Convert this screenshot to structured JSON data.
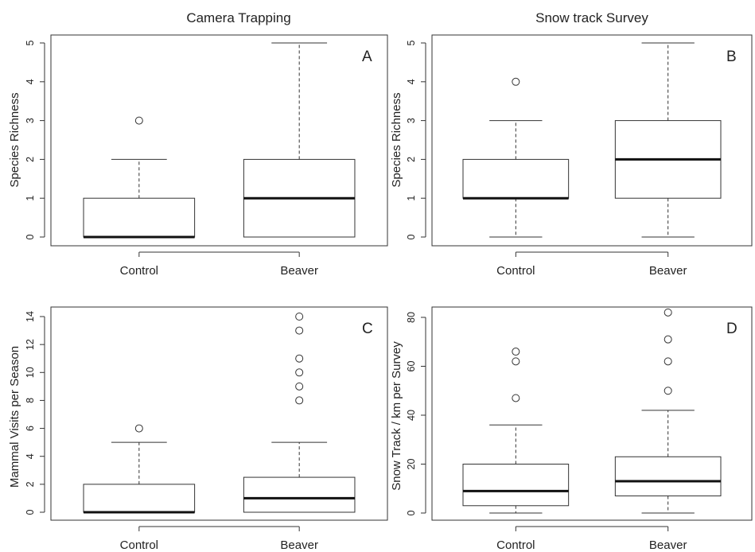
{
  "column_titles": [
    "Camera Trapping",
    "Snow track Survey"
  ],
  "chart_data": [
    {
      "type": "box",
      "panel_label": "A",
      "ylabel": "Species Richness",
      "categories": [
        "Control",
        "Beaver"
      ],
      "ylim": [
        0,
        5
      ],
      "yticks": [
        0,
        1,
        2,
        3,
        4,
        5
      ],
      "boxes": [
        {
          "min": 0,
          "q1": 0,
          "median": 0,
          "q3": 1,
          "max": 2,
          "outliers": [
            3
          ]
        },
        {
          "min": 0,
          "q1": 0,
          "median": 1,
          "q3": 2,
          "max": 5,
          "outliers": []
        }
      ]
    },
    {
      "type": "box",
      "panel_label": "B",
      "ylabel": "Species Richness",
      "categories": [
        "Control",
        "Beaver"
      ],
      "ylim": [
        0,
        5
      ],
      "yticks": [
        0,
        1,
        2,
        3,
        4,
        5
      ],
      "boxes": [
        {
          "min": 0,
          "q1": 1,
          "median": 1,
          "q3": 2,
          "max": 3,
          "outliers": [
            4
          ]
        },
        {
          "min": 0,
          "q1": 1,
          "median": 2,
          "q3": 3,
          "max": 5,
          "outliers": []
        }
      ]
    },
    {
      "type": "box",
      "panel_label": "C",
      "ylabel": "Mammal Visits per Season",
      "categories": [
        "Control",
        "Beaver"
      ],
      "ylim": [
        0,
        14
      ],
      "yticks": [
        0,
        2,
        4,
        6,
        8,
        10,
        12,
        14
      ],
      "boxes": [
        {
          "min": 0,
          "q1": 0,
          "median": 0,
          "q3": 2,
          "max": 5,
          "outliers": [
            6
          ]
        },
        {
          "min": 0,
          "q1": 0,
          "median": 1,
          "q3": 2.5,
          "max": 5,
          "outliers": [
            8,
            9,
            10,
            11,
            13,
            14
          ]
        }
      ]
    },
    {
      "type": "box",
      "panel_label": "D",
      "ylabel": "Snow Track / km per Survey",
      "categories": [
        "Control",
        "Beaver"
      ],
      "ylim": [
        0,
        80
      ],
      "yticks": [
        0,
        20,
        40,
        60,
        80
      ],
      "boxes": [
        {
          "min": 0,
          "q1": 3,
          "median": 9,
          "q3": 20,
          "max": 36,
          "outliers": [
            47,
            62,
            66
          ]
        },
        {
          "min": 0,
          "q1": 7,
          "median": 13,
          "q3": 23,
          "max": 42,
          "outliers": [
            50,
            62,
            71,
            82
          ]
        }
      ]
    }
  ]
}
